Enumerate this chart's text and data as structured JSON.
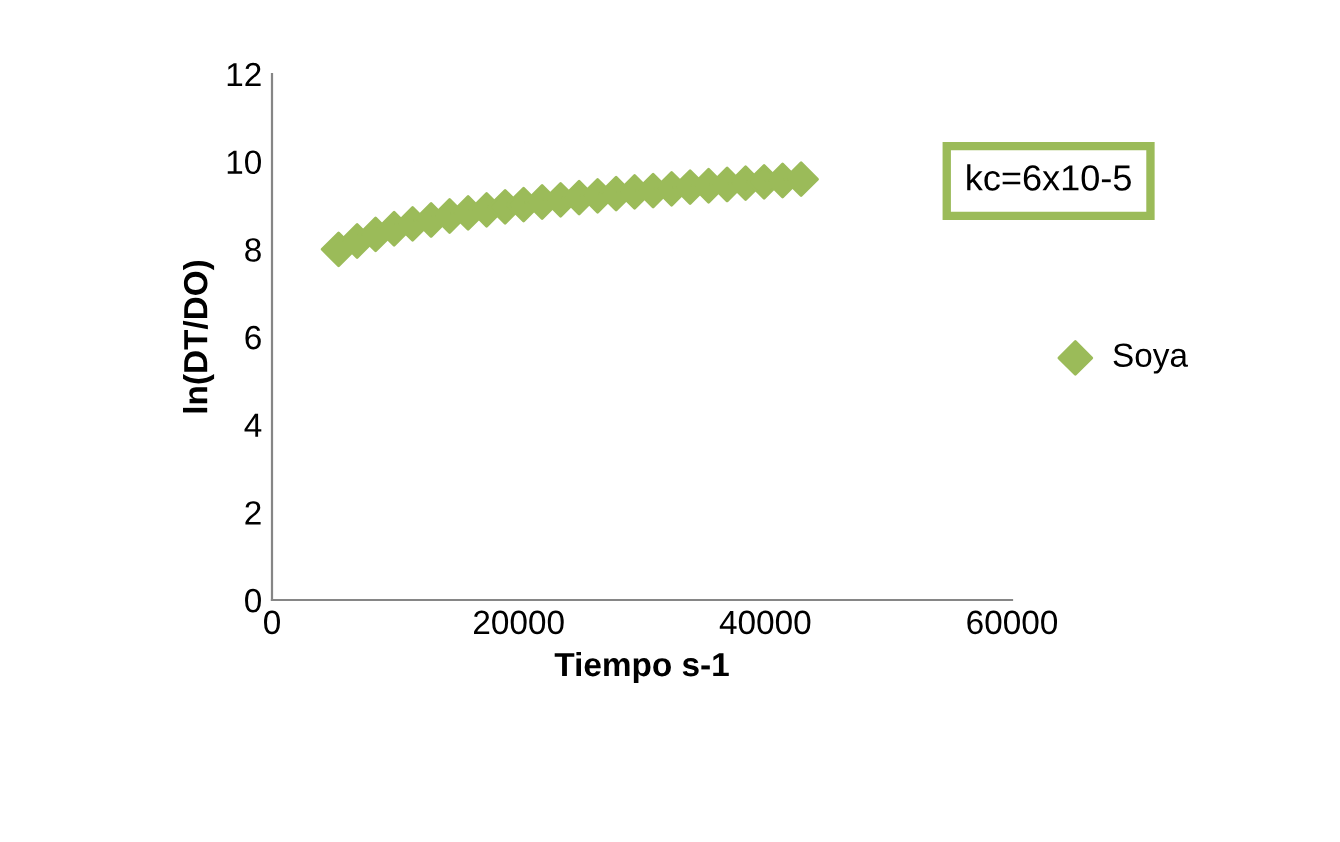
{
  "chart_data": {
    "type": "scatter",
    "xlabel": "Tiempo s-1",
    "ylabel": "ln(DT/DO)",
    "x": [
      5400,
      6900,
      8400,
      9900,
      11400,
      12900,
      14400,
      15900,
      17400,
      18900,
      20400,
      21900,
      23400,
      24900,
      26400,
      27900,
      29400,
      30900,
      32400,
      33900,
      35400,
      36900,
      38400,
      39900,
      41400,
      42900
    ],
    "series": [
      {
        "name": "Soya",
        "color": "#9bbb59",
        "values": [
          8.0,
          8.19,
          8.34,
          8.47,
          8.58,
          8.67,
          8.76,
          8.83,
          8.9,
          8.97,
          9.02,
          9.08,
          9.13,
          9.18,
          9.22,
          9.27,
          9.31,
          9.34,
          9.38,
          9.42,
          9.45,
          9.48,
          9.51,
          9.54,
          9.57,
          9.6
        ]
      }
    ],
    "xlim": [
      0,
      60000
    ],
    "xticks": [
      0,
      20000,
      40000,
      60000
    ],
    "ylim": [
      0,
      12
    ],
    "yticks": [
      0,
      2,
      4,
      6,
      8,
      10,
      12
    ],
    "annotations": [
      "kc=6x10-5"
    ],
    "marker": "diamond",
    "legend": "right",
    "grid": false
  }
}
